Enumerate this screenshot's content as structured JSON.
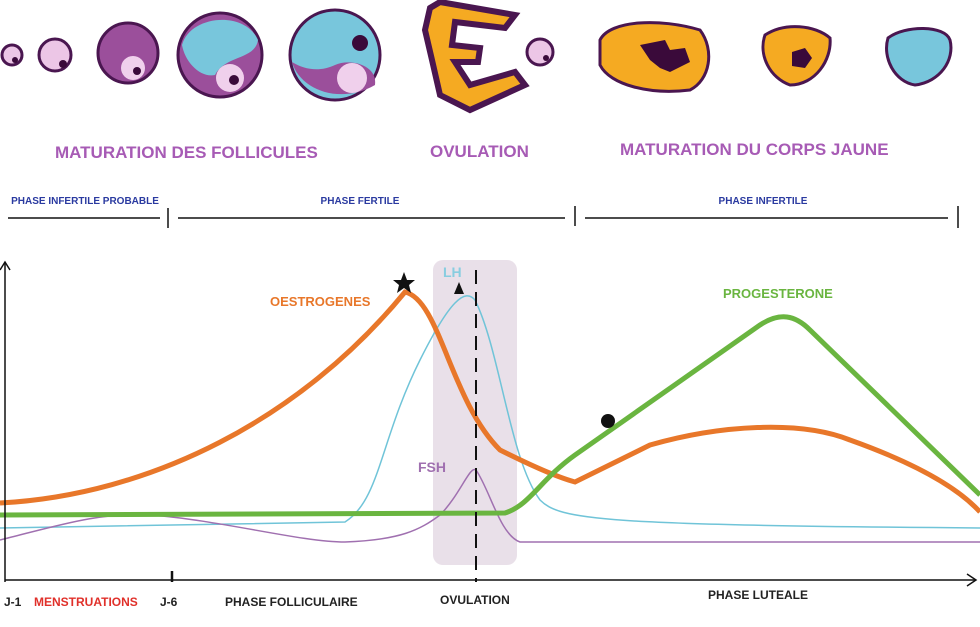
{
  "stages": {
    "follicles": "MATURATION DES FOLLICULES",
    "ovulation": "OVULATION",
    "corpus_luteum": "MATURATION DU CORPS JAUNE"
  },
  "phases": {
    "infertile_probable": "PHASE INFERTILE PROBABLE",
    "fertile": "PHASE FERTILE",
    "infertile": "PHASE INFERTILE"
  },
  "hormones": {
    "oestrogens": "OESTROGENES",
    "lh": "LH",
    "fsh": "FSH",
    "progesterone": "PROGESTERONE"
  },
  "axis": {
    "day1": "J-1",
    "menstruation": "MENSTRUATIONS",
    "day6": "J-6",
    "follicular": "PHASE FOLLICULAIRE",
    "ovulation": "OVULATION",
    "luteal": "PHASE LUTEALE"
  }
}
